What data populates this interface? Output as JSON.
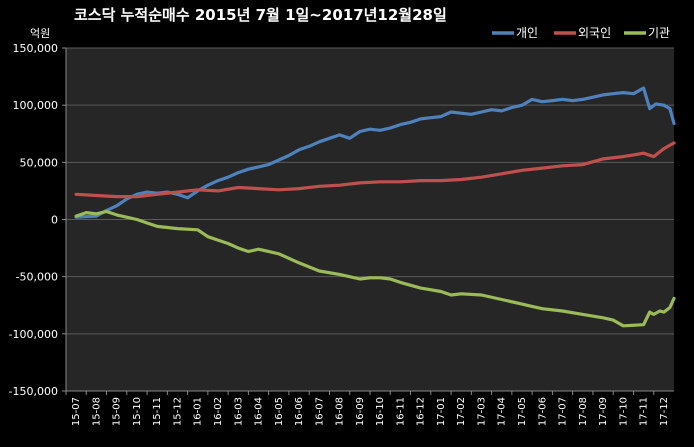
{
  "chart_data": {
    "type": "line",
    "title": "코스닥 누적순매수 2015년 7월 1일~2017년12월28일",
    "unit_label": "억원",
    "xlabel": "",
    "ylabel": "",
    "ylim": [
      -150000,
      150000
    ],
    "yticks": [
      150000,
      100000,
      50000,
      0,
      -50000,
      -100000,
      -150000
    ],
    "ytick_labels": [
      "150,000",
      "100,000",
      "50,000",
      "0",
      "-50,000",
      "-100,000",
      "-150,000"
    ],
    "categories": [
      "15-07",
      "15-08",
      "15-09",
      "15-10",
      "15-11",
      "15-12",
      "16-01",
      "16-02",
      "16-03",
      "16-04",
      "16-05",
      "16-06",
      "16-07",
      "16-08",
      "16-09",
      "16-10",
      "16-11",
      "16-12",
      "17-01",
      "17-02",
      "17-03",
      "17-04",
      "17-05",
      "17-06",
      "17-07",
      "17-08",
      "17-09",
      "17-10",
      "17-11",
      "17-12"
    ],
    "grid": true,
    "legend_position": "top-right",
    "series": [
      {
        "name": "개인",
        "color": "#4f81bd",
        "x": [
          0,
          1,
          1.5,
          2,
          2.5,
          3,
          3.5,
          4,
          4.5,
          5,
          5.5,
          6,
          6.5,
          7,
          7.5,
          8,
          8.5,
          9,
          9.5,
          10,
          10.5,
          11,
          11.5,
          12,
          12.5,
          13,
          13.5,
          14,
          14.5,
          15,
          15.5,
          16,
          16.5,
          17,
          17.5,
          18,
          18.5,
          19,
          19.5,
          20,
          20.5,
          21,
          21.5,
          22,
          22.5,
          23,
          23.5,
          24,
          24.5,
          25,
          25.5,
          26,
          26.5,
          27,
          27.5,
          28,
          28.3,
          28.6,
          29,
          29.3,
          29.5
        ],
        "values": [
          2000,
          3000,
          8000,
          12000,
          18000,
          22000,
          24000,
          23000,
          24000,
          22000,
          19000,
          25000,
          30000,
          34000,
          37000,
          41000,
          44000,
          46000,
          48000,
          52000,
          56000,
          61000,
          64000,
          68000,
          71000,
          74000,
          71000,
          77000,
          79000,
          78000,
          80000,
          83000,
          85000,
          88000,
          89000,
          90000,
          94000,
          93000,
          92000,
          94000,
          96000,
          95000,
          98000,
          100000,
          105000,
          103000,
          104000,
          105000,
          104000,
          105000,
          107000,
          109000,
          110000,
          111000,
          110000,
          115000,
          97000,
          101000,
          100000,
          97000,
          84000
        ]
      },
      {
        "name": "외국인",
        "color": "#c0504d",
        "x": [
          0,
          1,
          2,
          3,
          4,
          5,
          6,
          7,
          8,
          9,
          10,
          11,
          12,
          13,
          14,
          15,
          16,
          17,
          18,
          19,
          20,
          21,
          22,
          23,
          24,
          25,
          26,
          27,
          28,
          28.5,
          29,
          29.5
        ],
        "values": [
          22000,
          21000,
          20000,
          20000,
          22000,
          24000,
          26000,
          25000,
          28000,
          27000,
          26000,
          27000,
          29000,
          30000,
          32000,
          33000,
          33000,
          34000,
          34000,
          35000,
          37000,
          40000,
          43000,
          45000,
          47000,
          48000,
          53000,
          55000,
          58000,
          55000,
          62000,
          67000
        ]
      },
      {
        "name": "기관",
        "color": "#9bbb59",
        "x": [
          0,
          0.5,
          1,
          1.5,
          2,
          3,
          4,
          5,
          6,
          6.5,
          7,
          7.5,
          8,
          8.5,
          9,
          10,
          11,
          12,
          13,
          14,
          14.5,
          15,
          15.5,
          16,
          17,
          18,
          18.5,
          19,
          20,
          21,
          22,
          22.5,
          23,
          24,
          25,
          26,
          26.5,
          27,
          28,
          28.3,
          28.5,
          28.8,
          29,
          29.3,
          29.5
        ],
        "values": [
          3000,
          6000,
          5000,
          7000,
          4000,
          0,
          -6000,
          -8000,
          -9000,
          -15000,
          -18000,
          -21000,
          -25000,
          -28000,
          -26000,
          -30000,
          -38000,
          -45000,
          -48000,
          -52000,
          -51000,
          -51000,
          -52000,
          -55000,
          -60000,
          -63000,
          -66000,
          -65000,
          -66000,
          -70000,
          -74000,
          -76000,
          -78000,
          -80000,
          -83000,
          -86000,
          -88000,
          -93000,
          -92000,
          -81000,
          -83000,
          -80000,
          -81000,
          -77000,
          -69000
        ]
      }
    ]
  }
}
